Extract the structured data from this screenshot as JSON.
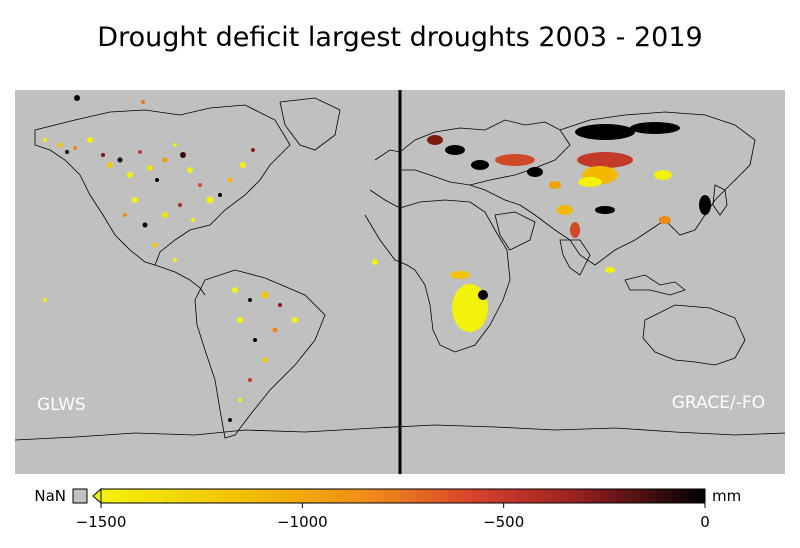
{
  "title": "Drought deficit largest droughts 2003 - 2019",
  "panels": {
    "left_label": "GLWS",
    "right_label": "GRACE/-FO"
  },
  "colorbar": {
    "nan_label": "NaN",
    "unit": "mm",
    "ticks": [
      "−1500",
      "−1000",
      "−500",
      "0"
    ],
    "tick_values": [
      -1500,
      -1000,
      -500,
      0
    ],
    "range": [
      -1500,
      0
    ],
    "colors": [
      "#f2f20a",
      "#f2b300",
      "#ef7a1a",
      "#d8402e",
      "#9c2222",
      "#4a1010",
      "#000000"
    ]
  },
  "colors": {
    "ocean": "#c0c0c0",
    "nan": "#c0c0c0",
    "coast": "#000000"
  }
}
